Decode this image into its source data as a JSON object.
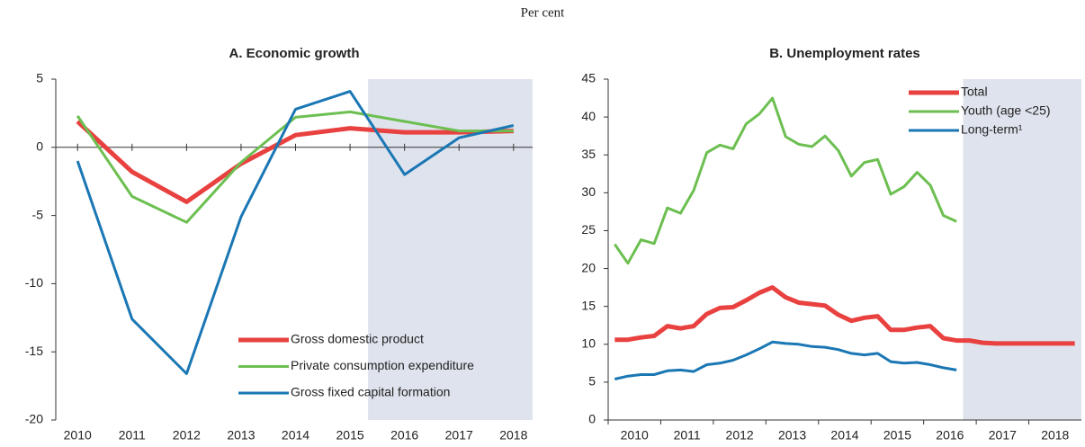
{
  "subtitle": "Per cent",
  "chart_data": [
    {
      "type": "line",
      "title": "A. Economic growth",
      "x": [
        2010,
        2011,
        2012,
        2013,
        2014,
        2015,
        2016,
        2017,
        2018
      ],
      "series": [
        {
          "name": "Gross domestic product",
          "color": "#e8413f",
          "values": [
            1.9,
            -1.8,
            -4.0,
            -1.2,
            0.9,
            1.4,
            1.1,
            1.1,
            1.2
          ]
        },
        {
          "name": "Private consumption expenditure",
          "color": "#6cbf50",
          "values": [
            2.3,
            -3.6,
            -5.5,
            -1.1,
            2.2,
            2.6,
            1.9,
            1.2,
            1.2
          ]
        },
        {
          "name": "Gross fixed capital formation",
          "color": "#1a77b4",
          "values": [
            -1.0,
            -12.6,
            -16.6,
            -5.1,
            2.8,
            4.1,
            -2.0,
            0.7,
            1.6
          ]
        }
      ],
      "xlim": [
        2009.6,
        2018.35
      ],
      "xticks": [
        2010,
        2011,
        2012,
        2013,
        2014,
        2015,
        2016,
        2017,
        2018
      ],
      "ylim": [
        -20,
        5
      ],
      "yticks": [
        -20,
        -15,
        -10,
        -5,
        0,
        5
      ],
      "shade_from": 2015.33,
      "legend": "lower right"
    },
    {
      "type": "line",
      "title": "B. Unemployment rates",
      "x": [
        2010.125,
        2010.375,
        2010.625,
        2010.875,
        2011.125,
        2011.375,
        2011.625,
        2011.875,
        2012.125,
        2012.375,
        2012.625,
        2012.875,
        2013.125,
        2013.375,
        2013.625,
        2013.875,
        2014.125,
        2014.375,
        2014.625,
        2014.875,
        2015.125,
        2015.375,
        2015.625,
        2015.875,
        2016.125,
        2016.375,
        2016.625,
        2016.875,
        2017.125,
        2017.375,
        2017.625,
        2017.875,
        2018.125,
        2018.375,
        2018.625,
        2018.875
      ],
      "series": [
        {
          "name": "Total",
          "color": "#e8413f",
          "values": [
            10.6,
            10.6,
            10.9,
            11.1,
            12.4,
            12.1,
            12.4,
            14.0,
            14.8,
            14.9,
            15.8,
            16.8,
            17.5,
            16.2,
            15.5,
            15.3,
            15.1,
            13.9,
            13.1,
            13.5,
            13.7,
            11.9,
            11.9,
            12.2,
            12.4,
            10.8,
            10.5,
            10.5,
            10.2,
            10.1,
            10.1,
            10.1,
            10.1,
            10.1,
            10.1,
            10.1
          ]
        },
        {
          "name": "Youth (age <25)",
          "color": "#6cbf50",
          "values": [
            23.2,
            20.7,
            23.8,
            23.3,
            28.0,
            27.3,
            30.3,
            35.3,
            36.3,
            35.8,
            39.1,
            40.4,
            42.5,
            37.4,
            36.4,
            36.1,
            37.5,
            35.6,
            32.2,
            34.0,
            34.4,
            29.8,
            30.8,
            32.7,
            31.0,
            27.0,
            26.2,
            null,
            null,
            null,
            null,
            null,
            null,
            null,
            null,
            null
          ]
        },
        {
          "name": "Long-term¹",
          "color": "#1a77b4",
          "values": [
            5.4,
            5.8,
            6.0,
            6.0,
            6.5,
            6.6,
            6.4,
            7.3,
            7.5,
            7.9,
            8.6,
            9.4,
            10.3,
            10.1,
            10.0,
            9.7,
            9.6,
            9.3,
            8.8,
            8.6,
            8.8,
            7.7,
            7.5,
            7.6,
            7.3,
            6.9,
            6.6,
            null,
            null,
            null,
            null,
            null,
            null,
            null,
            null,
            null
          ]
        }
      ],
      "xlim": [
        2010,
        2019
      ],
      "xticks": [
        {
          "value": 2010.5,
          "label": "2010"
        },
        {
          "value": 2011.5,
          "label": "2011"
        },
        {
          "value": 2012.5,
          "label": "2012"
        },
        {
          "value": 2013.5,
          "label": "2013"
        },
        {
          "value": 2014.5,
          "label": "2014"
        },
        {
          "value": 2015.5,
          "label": "2015"
        },
        {
          "value": 2016.5,
          "label": "2016"
        },
        {
          "value": 2017.5,
          "label": "2017"
        },
        {
          "value": 2018.5,
          "label": "2018"
        }
      ],
      "ylim": [
        0,
        45
      ],
      "yticks": [
        0,
        5,
        10,
        15,
        20,
        25,
        30,
        35,
        40,
        45
      ],
      "shade_from": 2016.75,
      "legend": "upper right"
    }
  ]
}
